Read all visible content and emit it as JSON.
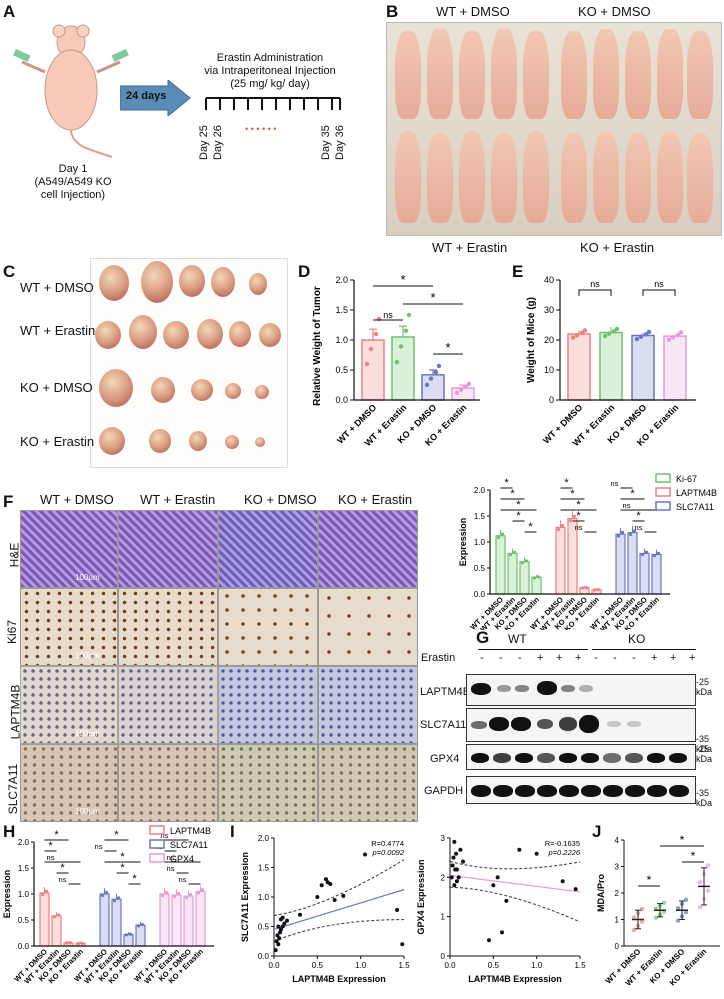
{
  "panels": {
    "A": "A",
    "B": "B",
    "C": "C",
    "D": "D",
    "E": "E",
    "F": "F",
    "G": "G",
    "H": "H",
    "I": "I",
    "J": "J"
  },
  "panelA": {
    "day1": "Day 1",
    "injection_line1": "(A549/A549 KO",
    "injection_line2": "cell Injection)",
    "arrow_label": "24 days",
    "title_line1": "Erastin Administration",
    "title_line2": "via Intraperitoneal Injection",
    "title_line3": "(25 mg/ kg/ day)",
    "days": [
      "Day 25",
      "Day 26",
      "Day 35",
      "Day 36"
    ],
    "dots": "• • • • • •"
  },
  "panelB": {
    "top_left": "WT + DMSO",
    "top_right": "KO + DMSO",
    "bottom_left": "WT + Erastin",
    "bottom_right": "KO + Erastin"
  },
  "panelC": {
    "rows": [
      "WT + DMSO",
      "WT + Erastin",
      "KO + DMSO",
      "KO + Erastin"
    ]
  },
  "groups": [
    "WT + DMSO",
    "WT + Erastin",
    "KO + DMSO",
    "KO + Erastin"
  ],
  "panelF": {
    "cols": [
      "WT + DMSO",
      "WT + Erastin",
      "KO + DMSO",
      "KO + Erastin"
    ],
    "rows": [
      "H&E",
      "Ki67",
      "LAPTM4B",
      "SLC7A11"
    ],
    "scale": "100μm"
  },
  "panelG": {
    "wt": "WT",
    "ko": "KO",
    "erastin": "Erastin",
    "signs": [
      "-",
      "-",
      "-",
      "+",
      "+",
      "+",
      "-",
      "-",
      "-",
      "+",
      "+",
      "+"
    ],
    "proteins": [
      "LAPTM4B",
      "SLC7A11",
      "GPX4",
      "GAPDH"
    ],
    "markers": [
      "-25 kDa",
      "-35 kDa",
      "-25 kDa",
      "-35 kDa"
    ]
  },
  "panelI": {
    "left": {
      "R": "R=0.4774",
      "p": "p=0.0092"
    },
    "right": {
      "R": "R=-0.1635",
      "p": "p=0.2226"
    }
  },
  "colors": {
    "wt_dmso": "#f08080",
    "wt_erastin": "#6cc36c",
    "ko_dmso": "#6b75c4",
    "ko_erastin": "#e79ad8"
  },
  "chart_data": [
    {
      "type": "bar",
      "panel": "D",
      "categories": [
        "WT + DMSO",
        "WT + Erastin",
        "KO + DMSO",
        "KO + Erastin"
      ],
      "values": [
        1.0,
        1.05,
        0.42,
        0.2
      ],
      "errors": [
        0.18,
        0.18,
        0.08,
        0.05
      ],
      "ylabel": "Relative Weight of Tumor",
      "ylim": [
        0,
        2.0
      ],
      "yticks": [
        0.0,
        0.5,
        1.0,
        1.5,
        2.0
      ],
      "sig": [
        "*",
        "*",
        "ns",
        "*"
      ]
    },
    {
      "type": "bar",
      "panel": "E",
      "categories": [
        "WT + DMSO",
        "WT + Erastin",
        "KO + DMSO",
        "KO + Erastin"
      ],
      "values": [
        22,
        22.5,
        21.5,
        21.3
      ],
      "errors": [
        1.2,
        1.8,
        0.8,
        0.6
      ],
      "ylabel": "Weight of Mice (g)",
      "ylim": [
        0,
        40
      ],
      "yticks": [
        0,
        10,
        20,
        30,
        40
      ],
      "sig": [
        "ns",
        "ns"
      ]
    },
    {
      "type": "bar",
      "panel": "F",
      "categories": [
        "WT + DMSO",
        "WT + Erastin",
        "KO + DMSO",
        "KO + Erastin"
      ],
      "ylabel": "Expression",
      "ylim": [
        0,
        2.0
      ],
      "yticks": [
        0.0,
        0.5,
        1.0,
        1.5,
        2.0
      ],
      "series": [
        {
          "name": "Ki-67",
          "values": [
            1.12,
            0.78,
            0.62,
            0.32
          ]
        },
        {
          "name": "LAPTM4B",
          "values": [
            1.28,
            1.45,
            0.12,
            0.08
          ]
        },
        {
          "name": "SLC7A11",
          "values": [
            1.15,
            1.18,
            0.78,
            0.76
          ]
        }
      ]
    },
    {
      "type": "bar",
      "panel": "H",
      "categories": [
        "WT + DMSO",
        "WT + Erastin",
        "KO + DMSO",
        "KO + Erastin"
      ],
      "ylabel": "Expression",
      "ylim": [
        0,
        2.0
      ],
      "yticks": [
        0.0,
        0.5,
        1.0,
        1.5,
        2.0
      ],
      "series": [
        {
          "name": "LAPTM4B",
          "values": [
            1.02,
            0.58,
            0.06,
            0.05
          ]
        },
        {
          "name": "SLC7A11",
          "values": [
            1.0,
            0.9,
            0.22,
            0.4
          ]
        },
        {
          "name": "GPX4",
          "values": [
            1.0,
            0.98,
            0.96,
            1.05
          ]
        }
      ]
    },
    {
      "type": "scatter",
      "panel": "I-left",
      "xlabel": "LAPTM4B Expression",
      "ylabel": "SLC7A11 Expression",
      "xlim": [
        0,
        1.5
      ],
      "ylim": [
        0,
        2.0
      ],
      "xticks": [
        0.0,
        0.5,
        1.0,
        1.5
      ],
      "yticks": [
        0.0,
        0.5,
        1.0,
        1.5,
        2.0
      ],
      "x": [
        0.02,
        0.03,
        0.04,
        0.05,
        0.06,
        0.07,
        0.08,
        0.1,
        0.12,
        0.15,
        0.3,
        0.5,
        0.55,
        0.6,
        0.62,
        0.65,
        0.7,
        0.8,
        1.05,
        1.42,
        1.48,
        0.05,
        0.08,
        0.1
      ],
      "y": [
        0.1,
        0.25,
        0.35,
        0.2,
        0.3,
        0.4,
        0.45,
        0.5,
        0.55,
        0.6,
        0.7,
        1.0,
        1.2,
        1.3,
        1.25,
        1.22,
        0.95,
        1.02,
        1.72,
        0.78,
        0.2,
        0.5,
        0.62,
        0.65
      ]
    },
    {
      "type": "scatter",
      "panel": "I-right",
      "xlabel": "LAPTM4B Expression",
      "ylabel": "GPX4 Expression",
      "xlim": [
        0,
        1.5
      ],
      "ylim": [
        0,
        3.0
      ],
      "xticks": [
        0.0,
        0.5,
        1.0,
        1.5
      ],
      "yticks": [
        0,
        1,
        2,
        3
      ],
      "x": [
        0.02,
        0.03,
        0.04,
        0.05,
        0.06,
        0.07,
        0.08,
        0.1,
        0.12,
        0.15,
        0.45,
        0.5,
        0.55,
        0.6,
        0.65,
        0.8,
        1.0,
        1.3,
        1.45,
        0.05,
        0.08
      ],
      "y": [
        2.0,
        2.3,
        2.5,
        1.8,
        2.2,
        2.6,
        1.9,
        2.0,
        2.7,
        2.4,
        0.4,
        1.8,
        2.0,
        0.6,
        1.4,
        2.7,
        2.6,
        1.9,
        1.7,
        2.9,
        2.2
      ]
    },
    {
      "type": "scatter",
      "panel": "J",
      "categories": [
        "WT + DMSO",
        "WT + Erastin",
        "KO + DMSO",
        "KO + Erastin"
      ],
      "means": [
        1.0,
        1.35,
        1.35,
        2.25
      ],
      "sd": [
        0.35,
        0.25,
        0.35,
        0.7
      ],
      "ylabel": "MDA/Pro",
      "ylim": [
        0,
        4
      ],
      "yticks": [
        0,
        1,
        2,
        3,
        4
      ]
    }
  ]
}
